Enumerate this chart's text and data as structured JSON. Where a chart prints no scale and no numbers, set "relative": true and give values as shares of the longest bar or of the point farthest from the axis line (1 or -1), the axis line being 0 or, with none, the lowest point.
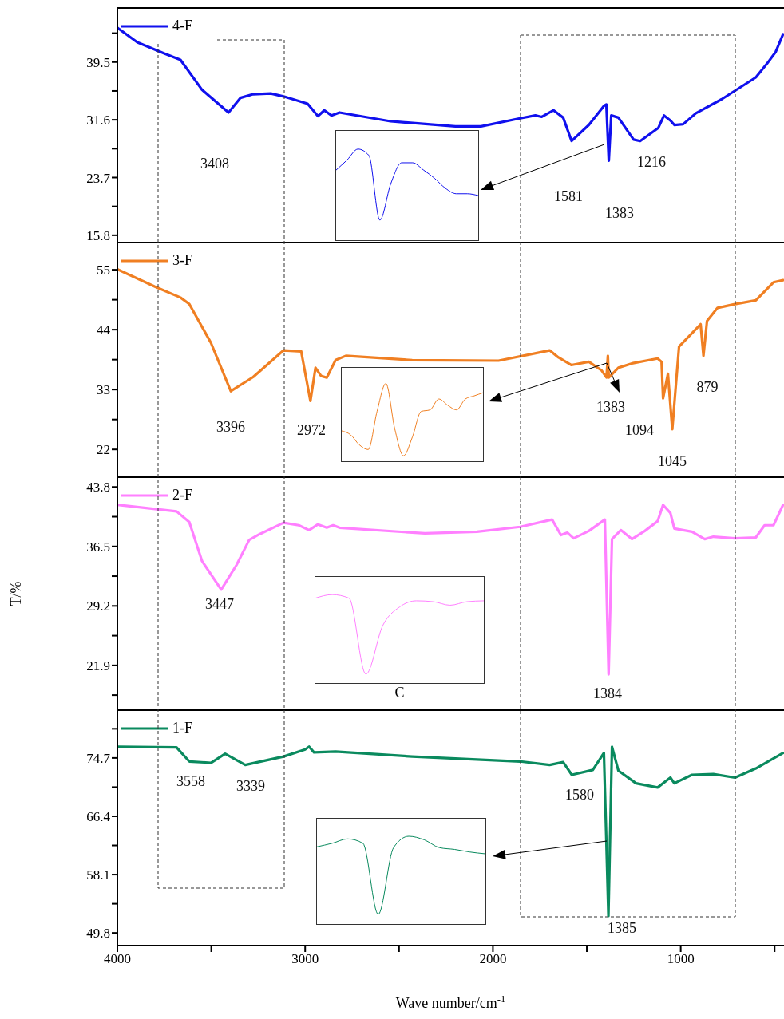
{
  "chart_data": [
    {
      "type": "line",
      "legend": "top left",
      "tick_labels": "y",
      "xlim": [
        4000,
        450
      ],
      "ylim": [
        14.8,
        46.9
      ],
      "yticks": [
        {
          "value": 43.45,
          "label": null
        },
        39.5,
        {
          "value": 35.55,
          "label": null
        },
        31.6,
        {
          "value": 27.65,
          "label": null
        },
        23.7,
        {
          "value": 19.75,
          "label": null
        },
        15.8
      ],
      "x": [
        4000,
        3894,
        3753,
        3664,
        3549,
        3408,
        3345,
        3277,
        3183,
        3115,
        2987,
        2932,
        2898,
        2860,
        2817,
        2545,
        2200,
        2064,
        1855,
        1774,
        1740,
        1677,
        1626,
        1581,
        1489,
        1409,
        1396,
        1383,
        1370,
        1332,
        1251,
        1216,
        1119,
        1089,
        1055,
        1034,
        987,
        919,
        783,
        600,
        540,
        494,
        455
      ],
      "series": [
        {
          "name": "4-F",
          "color": "#1010ee",
          "values": [
            44.2,
            42.2,
            40.7,
            39.8,
            35.7,
            32.6,
            34.6,
            35.1,
            35.2,
            34.8,
            33.8,
            32.1,
            32.9,
            32.2,
            32.6,
            31.4,
            30.7,
            30.7,
            31.8,
            32.2,
            32.0,
            32.9,
            31.9,
            28.7,
            30.9,
            33.5,
            33.7,
            26.0,
            32.2,
            31.9,
            28.9,
            28.7,
            30.5,
            32.2,
            31.5,
            30.9,
            31.0,
            32.5,
            34.4,
            37.4,
            39.3,
            40.9,
            43.3
          ]
        }
      ],
      "annotations": [
        "3408",
        "1581",
        "1383",
        "1216"
      ]
    },
    {
      "type": "line",
      "legend": "top left",
      "tick_labels": "y",
      "xlim": [
        4000,
        450
      ],
      "ylim": [
        16.9,
        60
      ],
      "yticks": [
        55,
        {
          "value": 49.5,
          "label": null
        },
        44,
        {
          "value": 38.5,
          "label": null
        },
        33,
        {
          "value": 27.5,
          "label": null
        },
        22
      ],
      "x": [
        4000,
        3800,
        3664,
        3617,
        3502,
        3396,
        3277,
        3115,
        3021,
        2972,
        2945,
        2915,
        2885,
        2838,
        2783,
        2430,
        1970,
        1698,
        1651,
        1583,
        1489,
        1421,
        1395,
        1388,
        1383,
        1332,
        1260,
        1123,
        1102,
        1094,
        1068,
        1045,
        1009,
        894,
        879,
        860,
        804,
        711,
        600,
        506,
        455
      ],
      "series": [
        {
          "name": "3-F",
          "color": "#f07f22",
          "values": [
            55.1,
            51.9,
            49.9,
            48.7,
            41.6,
            32.7,
            35.3,
            40.2,
            40.0,
            30.9,
            37.0,
            35.5,
            35.2,
            38.4,
            39.2,
            38.4,
            38.3,
            40.2,
            38.9,
            37.5,
            38.1,
            36.5,
            35.2,
            39.2,
            35.2,
            37.0,
            37.8,
            38.7,
            38.1,
            31.4,
            35.9,
            25.7,
            40.9,
            45.0,
            39.2,
            45.6,
            48.0,
            48.7,
            49.4,
            52.7,
            53.1
          ]
        }
      ],
      "annotations": [
        "3396",
        "2972",
        "1383",
        "1094",
        "1045",
        "879"
      ]
    },
    {
      "type": "line",
      "legend": "top left",
      "tick_labels": "y",
      "ylabel": "T/%",
      "xlim": [
        4000,
        450
      ],
      "ylim": [
        16.4,
        45
      ],
      "yticks": [
        43.8,
        {
          "value": 40.15,
          "label": null
        },
        36.5,
        {
          "value": 32.85,
          "label": null
        },
        29.2,
        {
          "value": 25.55,
          "label": null
        },
        21.9,
        {
          "value": 18.25,
          "label": null
        }
      ],
      "x": [
        4000,
        3685,
        3617,
        3549,
        3447,
        3366,
        3298,
        3243,
        3115,
        3034,
        2979,
        2932,
        2885,
        2851,
        2817,
        2430,
        2362,
        2085,
        1855,
        1685,
        1638,
        1604,
        1570,
        1489,
        1404,
        1384,
        1366,
        1319,
        1260,
        1191,
        1123,
        1094,
        1055,
        1034,
        940,
        872,
        826,
        711,
        600,
        553,
        506,
        455
      ],
      "series": [
        {
          "name": "2-F",
          "color": "#ff80ff",
          "values": [
            41.6,
            40.8,
            39.5,
            34.7,
            31.2,
            34.2,
            37.3,
            38.0,
            39.4,
            39.1,
            38.5,
            39.2,
            38.8,
            39.1,
            38.8,
            38.2,
            38.1,
            38.3,
            38.9,
            39.8,
            37.9,
            38.2,
            37.5,
            38.4,
            39.8,
            20.8,
            37.4,
            38.5,
            37.4,
            38.4,
            39.6,
            41.6,
            40.6,
            38.7,
            38.3,
            37.4,
            37.7,
            37.5,
            37.6,
            39.1,
            39.1,
            41.6
          ]
        }
      ],
      "annotations": [
        "3447",
        "1384"
      ]
    },
    {
      "type": "line",
      "legend": "top left",
      "xlabel": "Wave number/cm$^{-1}$",
      "xlim": [
        4000,
        450
      ],
      "ylim": [
        48,
        81.5
      ],
      "xticks": [
        4000,
        {
          "value": 3500,
          "label": null
        },
        3000,
        {
          "value": 2500,
          "label": null
        },
        2000,
        {
          "value": 1500,
          "label": null
        },
        1000,
        {
          "value": 500,
          "label": null
        }
      ],
      "yticks": [
        {
          "value": 78.85,
          "label": null
        },
        74.7,
        {
          "value": 70.55,
          "label": null
        },
        66.4,
        {
          "value": 62.25,
          "label": null
        },
        58.1,
        {
          "value": 53.95,
          "label": null
        },
        49.8
      ],
      "x": [
        4000,
        3685,
        3617,
        3502,
        3426,
        3319,
        3115,
        3000,
        2979,
        2953,
        2838,
        2430,
        1855,
        1698,
        1626,
        1580,
        1468,
        1409,
        1385,
        1366,
        1332,
        1238,
        1123,
        1055,
        1034,
        940,
        826,
        711,
        600,
        455
      ],
      "series": [
        {
          "name": "1-F",
          "color": "#0a8a5e",
          "values": [
            76.3,
            76.2,
            74.2,
            74.0,
            75.3,
            73.7,
            74.9,
            75.9,
            76.3,
            75.5,
            75.6,
            74.9,
            74.2,
            73.7,
            74.1,
            72.3,
            73.0,
            75.4,
            52.2,
            76.3,
            72.9,
            71.1,
            70.5,
            71.9,
            71.1,
            72.3,
            72.4,
            71.9,
            73.2,
            75.4
          ]
        }
      ],
      "annotations": [
        "3558",
        "3339",
        "1580",
        "1385"
      ]
    },
    {
      "type": "line",
      "relative": true,
      "categories": [
        null,
        null,
        null,
        null,
        null,
        null,
        null,
        null,
        null,
        null,
        null,
        null,
        null,
        null
      ],
      "series": [
        {
          "color": "#1010ee",
          "values": [
            0.77,
            0.88,
            1,
            0.93,
            0.22,
            0.62,
            0.85,
            0.85,
            0.77,
            0.68,
            0.57,
            0.51,
            0.51,
            0.49
          ]
        }
      ]
    },
    {
      "type": "line",
      "relative": true,
      "categories": [
        null,
        null,
        null,
        null,
        null,
        null,
        null,
        null,
        null,
        null,
        null,
        null,
        null,
        null,
        null,
        null,
        null
      ],
      "series": [
        {
          "color": "#f07f22",
          "values": [
            0.39,
            0.34,
            0.21,
            0.15,
            0.64,
            1,
            0.42,
            0.07,
            0.31,
            0.64,
            0.66,
            0.8,
            0.72,
            0.66,
            0.8,
            0.84,
            0.88
          ]
        }
      ]
    },
    {
      "type": "line",
      "relative": true,
      "xlabel": "C",
      "categories": [
        null,
        null,
        null,
        null,
        null,
        null,
        null,
        null,
        null,
        null,
        null
      ],
      "series": [
        {
          "color": "#ff80ff",
          "values": [
            0.96,
            1,
            0.96,
            0.1,
            0.65,
            0.86,
            0.93,
            0.92,
            0.88,
            0.92,
            0.93
          ]
        }
      ]
    },
    {
      "type": "line",
      "relative": true,
      "categories": [
        null,
        null,
        null,
        null,
        null,
        null,
        null,
        null,
        null,
        null,
        null,
        null
      ],
      "series": [
        {
          "color": "#0a8a5e",
          "values": [
            0.88,
            0.92,
            0.97,
            0.92,
            0.11,
            0.87,
            1,
            0.96,
            0.87,
            0.85,
            0.82,
            0.8
          ]
        }
      ]
    }
  ]
}
